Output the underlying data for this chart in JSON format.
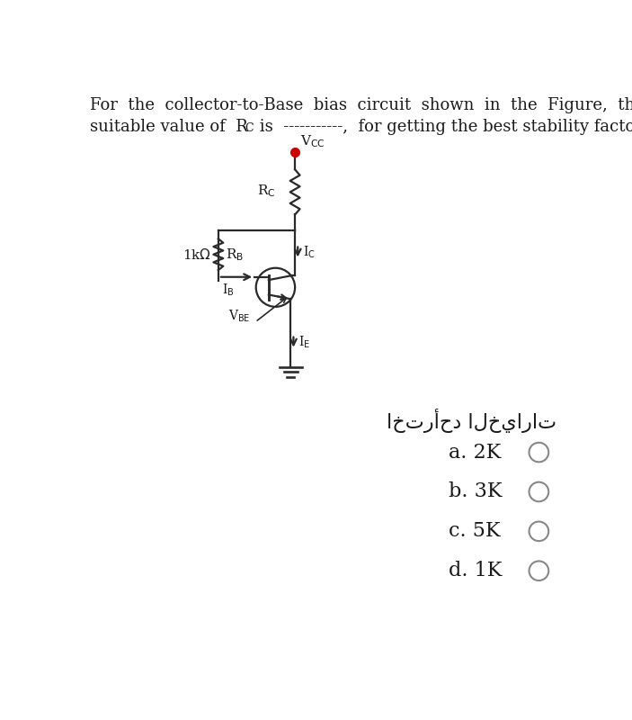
{
  "background_color": "#ffffff",
  "text_color": "#1a1a1a",
  "circuit_color": "#2a2a2a",
  "vcc_dot_color": "#cc0000",
  "arabic_label": "اخترأحد الخيارات",
  "options": [
    "a. 2K",
    "b. 3K",
    "c. 5K",
    "d. 1K"
  ],
  "font_size_question": 13,
  "font_size_options": 16,
  "font_size_arabic": 16,
  "font_size_circuit": 11
}
